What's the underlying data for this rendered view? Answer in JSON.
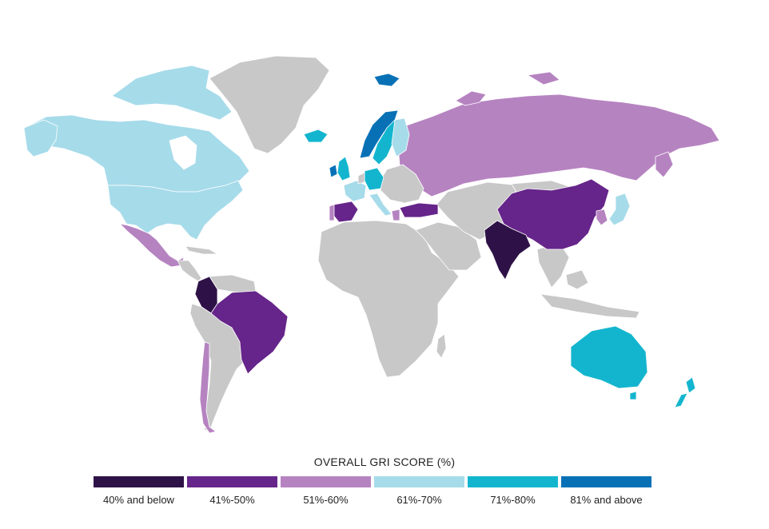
{
  "legend": {
    "title": "OVERALL GRI SCORE (%)",
    "bins": [
      {
        "label": "40% and below",
        "color": "#2e1247"
      },
      {
        "label": "41%-50%",
        "color": "#66258a"
      },
      {
        "label": "51%-60%",
        "color": "#b683c1"
      },
      {
        "label": "61%-70%",
        "color": "#a6dbea"
      },
      {
        "label": "71%-80%",
        "color": "#13b5ce"
      },
      {
        "label": "81% and above",
        "color": "#0871b6"
      }
    ]
  },
  "colors": {
    "no_data": "#c8c8c8"
  },
  "regions": [
    {
      "name": "Canada",
      "bin": 3
    },
    {
      "name": "United States",
      "bin": 3
    },
    {
      "name": "Mexico",
      "bin": 2
    },
    {
      "name": "Colombia",
      "bin": 0
    },
    {
      "name": "Brazil",
      "bin": 1
    },
    {
      "name": "Chile",
      "bin": 2
    },
    {
      "name": "Iceland",
      "bin": 4
    },
    {
      "name": "Norway",
      "bin": 5
    },
    {
      "name": "Sweden",
      "bin": 4
    },
    {
      "name": "Finland",
      "bin": 3
    },
    {
      "name": "United Kingdom",
      "bin": 4
    },
    {
      "name": "Ireland",
      "bin": 5
    },
    {
      "name": "France",
      "bin": 3
    },
    {
      "name": "Germany",
      "bin": 4
    },
    {
      "name": "Italy",
      "bin": 3
    },
    {
      "name": "Spain",
      "bin": 1
    },
    {
      "name": "Portugal",
      "bin": 2
    },
    {
      "name": "Greece",
      "bin": 2
    },
    {
      "name": "Turkey",
      "bin": 1
    },
    {
      "name": "Russia",
      "bin": 2
    },
    {
      "name": "China",
      "bin": 1
    },
    {
      "name": "India",
      "bin": 0
    },
    {
      "name": "Japan",
      "bin": 3
    },
    {
      "name": "South Korea",
      "bin": 2
    },
    {
      "name": "Australia",
      "bin": 4
    },
    {
      "name": "New Zealand",
      "bin": 4
    },
    {
      "name": "Svalbard",
      "bin": 5
    }
  ]
}
